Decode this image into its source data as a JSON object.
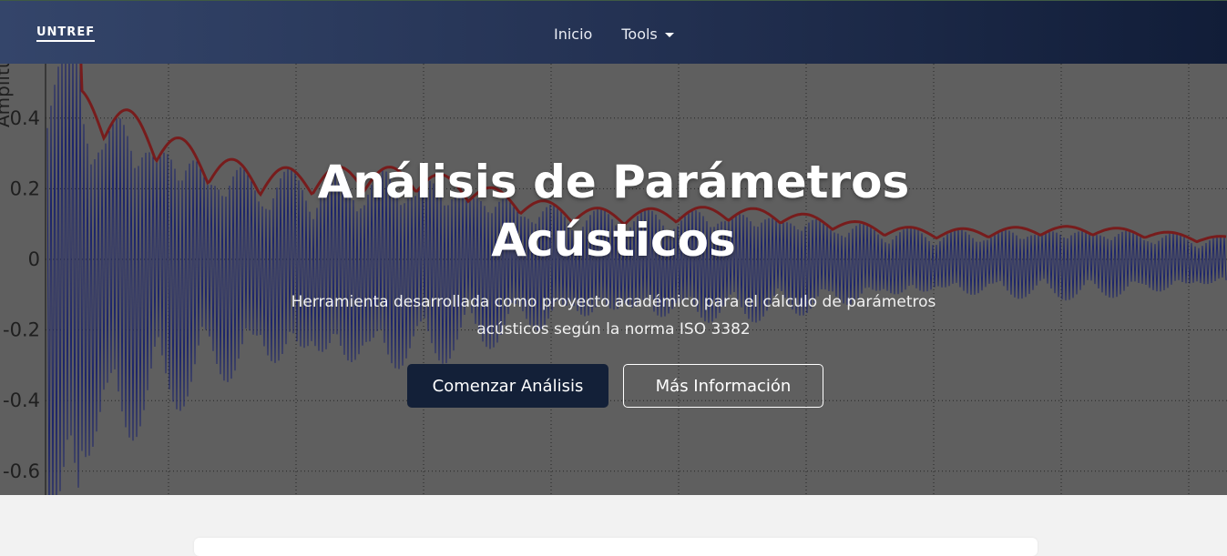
{
  "navbar": {
    "brand": "UNTREF",
    "links": [
      {
        "label": "Inicio"
      },
      {
        "label": "Tools"
      }
    ]
  },
  "hero": {
    "title_line1": "Análisis de Parámetros",
    "title_line2": "Acústicos",
    "subtitle_line1": "Herramienta desarrollada como proyecto académico para el cálculo de parámetros",
    "subtitle_line2": "acústicos según la norma ISO 3382",
    "primary_button": "Comenzar Análisis",
    "secondary_button": "Más Información"
  },
  "background_plot": {
    "ylabel": "Amplitud",
    "ytick_labels": [
      "0.4",
      "0.2",
      "0",
      "-0.2",
      "-0.4",
      "-0.6"
    ],
    "colors": {
      "signal": "#0f1a7a",
      "envelope": "#8b0d0d",
      "plot_bg": "#6a6a6a",
      "grid": "#1a1a1a"
    }
  },
  "colors": {
    "navbar_start": "#34456a",
    "navbar_end": "#111d38",
    "primary_button": "#132038",
    "page_bg": "#f2f2f2"
  }
}
